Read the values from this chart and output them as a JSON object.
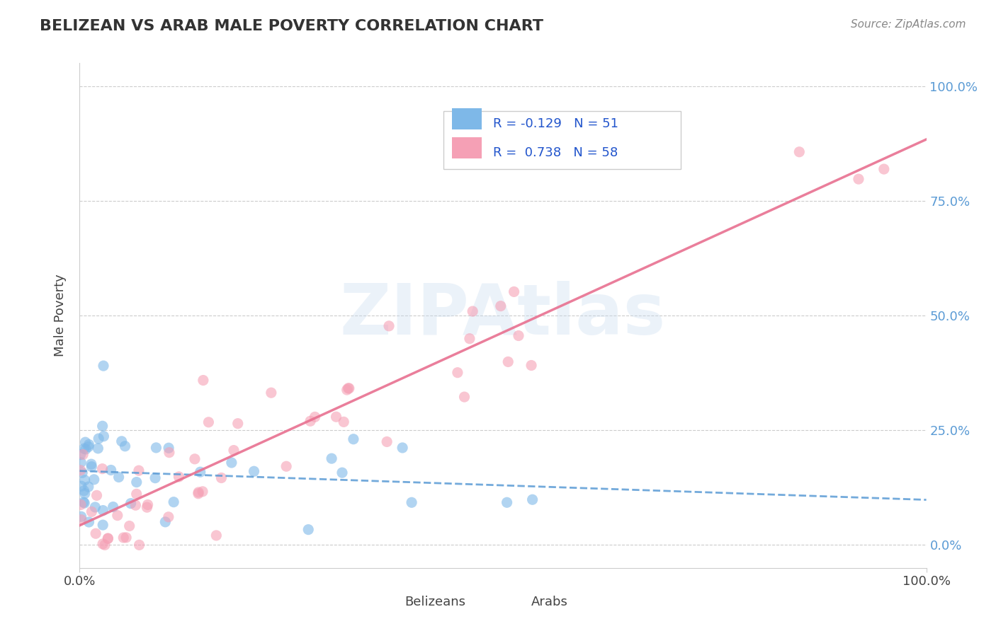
{
  "title": "BELIZEAN VS ARAB MALE POVERTY CORRELATION CHART",
  "source": "Source: ZipAtlas.com",
  "ylabel": "Male Poverty",
  "xlim": [
    0.0,
    1.0
  ],
  "ylim": [
    -0.05,
    1.05
  ],
  "belizean_color": "#7EB8E8",
  "arab_color": "#F5A0B5",
  "belizean_line_color": "#5B9BD5",
  "arab_line_color": "#E87090",
  "R_belizean": -0.129,
  "N_belizean": 51,
  "R_arab": 0.738,
  "N_arab": 58,
  "legend_belizean_label": "Belizeans",
  "legend_arab_label": "Arabs",
  "watermark": "ZIPAtlas",
  "background_color": "#FFFFFF",
  "grid_color": "#CCCCCC",
  "belizean_seed": 42,
  "arab_seed": 99
}
